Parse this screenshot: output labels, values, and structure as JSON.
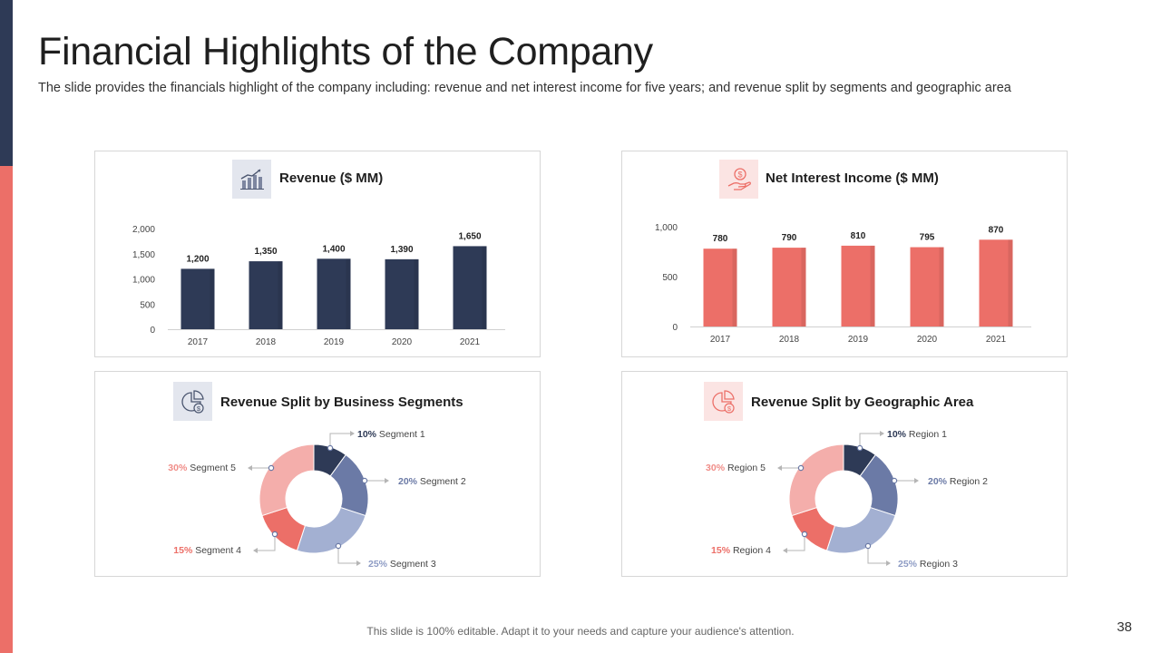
{
  "header": {
    "title": "Financial Highlights of the Company",
    "subtitle": "The slide provides the financials highlight of the company including: revenue and net interest income for five years; and revenue split by segments and geographic area"
  },
  "footer": {
    "note": "This slide is 100% editable. Adapt it to your needs and capture your audience's attention.",
    "page_number": "38"
  },
  "colors": {
    "navy": "#2e3a56",
    "coral": "#ec6f68"
  },
  "chart_data": [
    {
      "type": "bar",
      "title": "Revenue ($ MM)",
      "categories": [
        "2017",
        "2018",
        "2019",
        "2020",
        "2021"
      ],
      "values": [
        1200,
        1350,
        1400,
        1390,
        1650
      ],
      "value_labels": [
        "1,200",
        "1,350",
        "1,400",
        "1,390",
        "1,650"
      ],
      "yticks": [
        0,
        500,
        1000,
        1500,
        2000
      ],
      "ytick_labels": [
        "0",
        "500",
        "1,000",
        "1,500",
        "2,000"
      ],
      "ylim": [
        0,
        2000
      ],
      "color": "#2e3a56",
      "icon": "revenue-chart-icon"
    },
    {
      "type": "bar",
      "title": "Net Interest Income ($ MM)",
      "categories": [
        "2017",
        "2018",
        "2019",
        "2020",
        "2021"
      ],
      "values": [
        780,
        790,
        810,
        795,
        870
      ],
      "value_labels": [
        "780",
        "790",
        "810",
        "795",
        "870"
      ],
      "yticks": [
        0,
        500,
        1000
      ],
      "ytick_labels": [
        "0",
        "500",
        "1,000"
      ],
      "ylim": [
        0,
        1000
      ],
      "color": "#ec6f68",
      "icon": "hand-dollar-icon"
    },
    {
      "type": "pie",
      "title": "Revenue Split by Business Segments",
      "labels": [
        "Segment 1",
        "Segment 2",
        "Segment 3",
        "Segment 4",
        "Segment 5"
      ],
      "values": [
        10,
        20,
        25,
        15,
        30
      ],
      "percent_labels": [
        "10%",
        "20%",
        "25%",
        "15%",
        "30%"
      ],
      "colors": [
        "#2e3a56",
        "#6b7aa6",
        "#a3b0d2",
        "#ec6f68",
        "#f4aeab"
      ],
      "label_colors": [
        "#2e3a56",
        "#6b7aa6",
        "#8d9bc4",
        "#ec6f68",
        "#f08d88"
      ],
      "icon": "pie-dollar-icon"
    },
    {
      "type": "pie",
      "title": "Revenue Split by Geographic Area",
      "labels": [
        "Region 1",
        "Region 2",
        "Region 3",
        "Region 4",
        "Region 5"
      ],
      "values": [
        10,
        20,
        25,
        15,
        30
      ],
      "percent_labels": [
        "10%",
        "20%",
        "25%",
        "15%",
        "30%"
      ],
      "colors": [
        "#2e3a56",
        "#6b7aa6",
        "#a3b0d2",
        "#ec6f68",
        "#f4aeab"
      ],
      "label_colors": [
        "#2e3a56",
        "#6b7aa6",
        "#8d9bc4",
        "#ec6f68",
        "#f08d88"
      ],
      "icon": "pie-dollar-icon"
    }
  ]
}
